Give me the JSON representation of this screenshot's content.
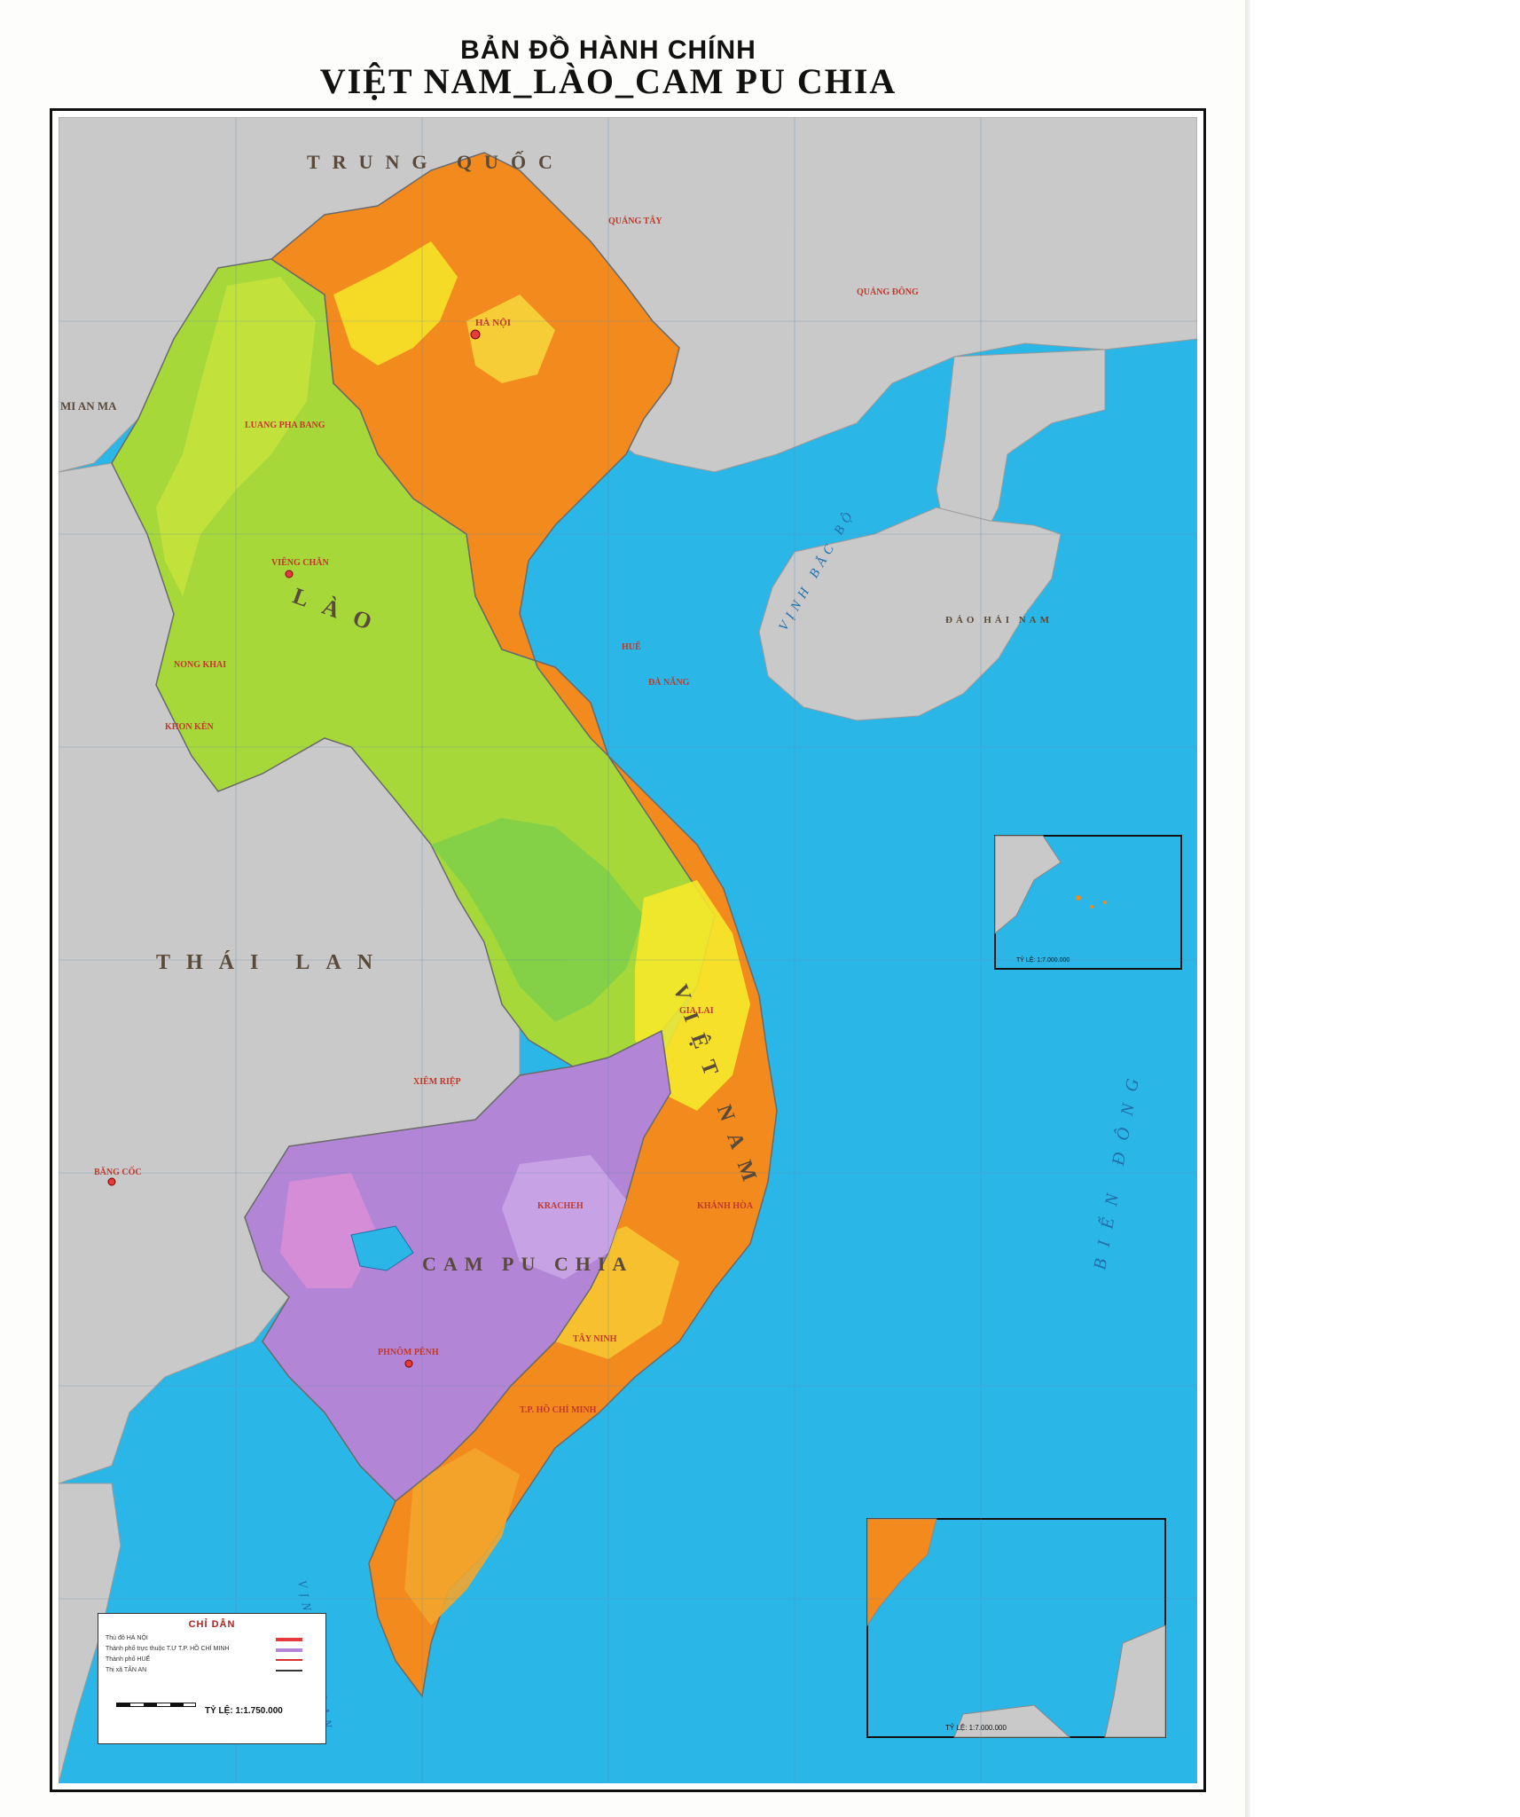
{
  "title": {
    "line1": "BẢN ĐỒ HÀNH CHÍNH",
    "line2": "VIỆT NAM_LÀO_CAM PU CHIA"
  },
  "labels": {
    "china": "TRUNG QUỐC",
    "myanmar": "MI AN MA",
    "thailand": "THÁI LAN",
    "laos": "LÀO",
    "cambodia": "CAM PU CHIA",
    "vietnam": "VIỆT NAM",
    "gulf_tonkin": "VỊNH BẮC BỘ",
    "east_sea": "BIỂN ĐÔNG",
    "gulf_thailand": "VỊNH THÁI LAN",
    "hainan": "ĐẢO HẢI NAM"
  },
  "places": {
    "ha_noi": "HÀ NỘI",
    "luang_pha_bang": "LUANG PHA BANG",
    "vieng_chan": "VIÊNG CHĂN",
    "hue": "HUẾ",
    "da_nang": "ĐÀ NẴNG",
    "phnom_penh": "PHNÔM PÊNH",
    "ho_chi_minh": "T.P. HỒ CHÍ MINH",
    "bang_coc": "BĂNG CỐC",
    "nong_khai": "NONG KHAI",
    "khon_ken": "KHON KÈN",
    "quang_dong": "QUẢNG ĐÔNG",
    "quang_tay": "QUẢNG TÂY",
    "xiem_riep": "XIÊM RIỆP",
    "kracheh": "KRACHEH",
    "tay_ninh": "TÂY NINH",
    "khanh_hoa": "KHÁNH HÒA",
    "gia_lai": "GIA LAI"
  },
  "insets": {
    "scale1": "TỶ LỆ: 1:7.000.000",
    "scale2": "TỶ LỆ: 1:7.000.000"
  },
  "legend": {
    "title": "CHỈ DẪN",
    "items": [
      "Thủ đô  HÀ NỘI",
      "Thành phố trực thuộc T.Ư  T.P. HỒ CHÍ MINH",
      "Thành phố  HUẾ",
      "Thị xã  TÂN AN"
    ],
    "scale": "TỶ LỆ: 1:1.750.000"
  },
  "colors": {
    "vietnam": "#f28a1e",
    "laos": "#a6d83a",
    "cambodia": "#b385d6",
    "neighbours": "#c9c9c9",
    "sea": "#2bb6e8"
  }
}
